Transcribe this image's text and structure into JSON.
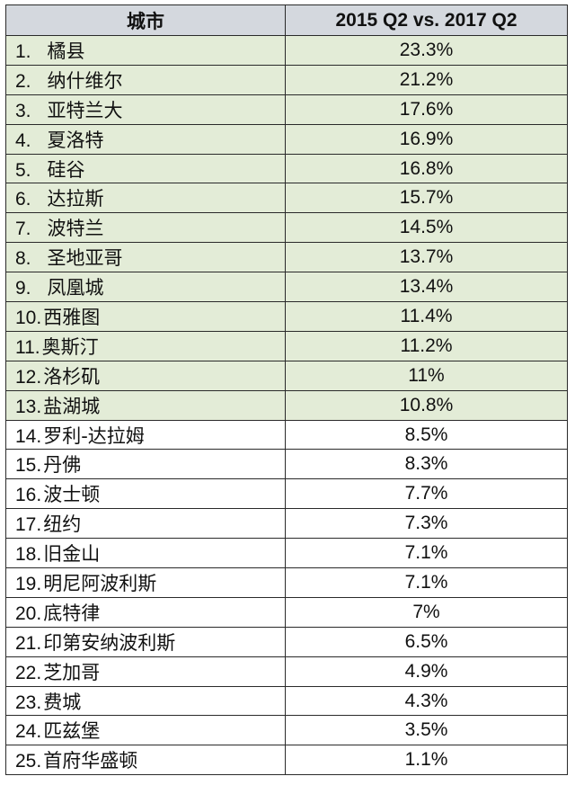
{
  "chart_data": {
    "type": "table",
    "columns": [
      "城市",
      "2015 Q2 vs. 2017 Q2"
    ],
    "highlight_color": "#e3ecd7",
    "header_color": "#d4d8de",
    "highlighted_count": 13,
    "rows": [
      {
        "rank": "1.",
        "city": "橘县",
        "value": "23.3%"
      },
      {
        "rank": "2.",
        "city": "纳什维尔",
        "value": "21.2%"
      },
      {
        "rank": "3.",
        "city": "亚特兰大",
        "value": "17.6%"
      },
      {
        "rank": "4.",
        "city": "夏洛特",
        "value": "16.9%"
      },
      {
        "rank": "5.",
        "city": "硅谷",
        "value": "16.8%"
      },
      {
        "rank": "6.",
        "city": "达拉斯",
        "value": "15.7%"
      },
      {
        "rank": "7.",
        "city": "波特兰",
        "value": "14.5%"
      },
      {
        "rank": "8.",
        "city": "圣地亚哥",
        "value": "13.7%"
      },
      {
        "rank": "9.",
        "city": "凤凰城",
        "value": "13.4%"
      },
      {
        "rank": "10.",
        "city": "西雅图",
        "value": "11.4%"
      },
      {
        "rank": "11.",
        "city": "奥斯汀",
        "value": "11.2%"
      },
      {
        "rank": "12.",
        "city": "洛杉矶",
        "value": "11%"
      },
      {
        "rank": "13.",
        "city": "盐湖城",
        "value": "10.8%"
      },
      {
        "rank": "14.",
        "city": "罗利-达拉姆",
        "value": "8.5%"
      },
      {
        "rank": "15.",
        "city": "丹佛",
        "value": "8.3%"
      },
      {
        "rank": "16.",
        "city": "波士顿",
        "value": "7.7%"
      },
      {
        "rank": "17.",
        "city": "纽约",
        "value": "7.3%"
      },
      {
        "rank": "18.",
        "city": "旧金山",
        "value": "7.1%"
      },
      {
        "rank": "19.",
        "city": "明尼阿波利斯",
        "value": "7.1%"
      },
      {
        "rank": "20.",
        "city": "底特律",
        "value": "7%"
      },
      {
        "rank": "21.",
        "city": "印第安纳波利斯",
        "value": "6.5%"
      },
      {
        "rank": "22.",
        "city": "芝加哥",
        "value": "4.9%"
      },
      {
        "rank": "23.",
        "city": "费城",
        "value": "4.3%"
      },
      {
        "rank": "24.",
        "city": "匹兹堡",
        "value": "3.5%"
      },
      {
        "rank": "25.",
        "city": "首府华盛顿",
        "value": "1.1%"
      }
    ]
  }
}
